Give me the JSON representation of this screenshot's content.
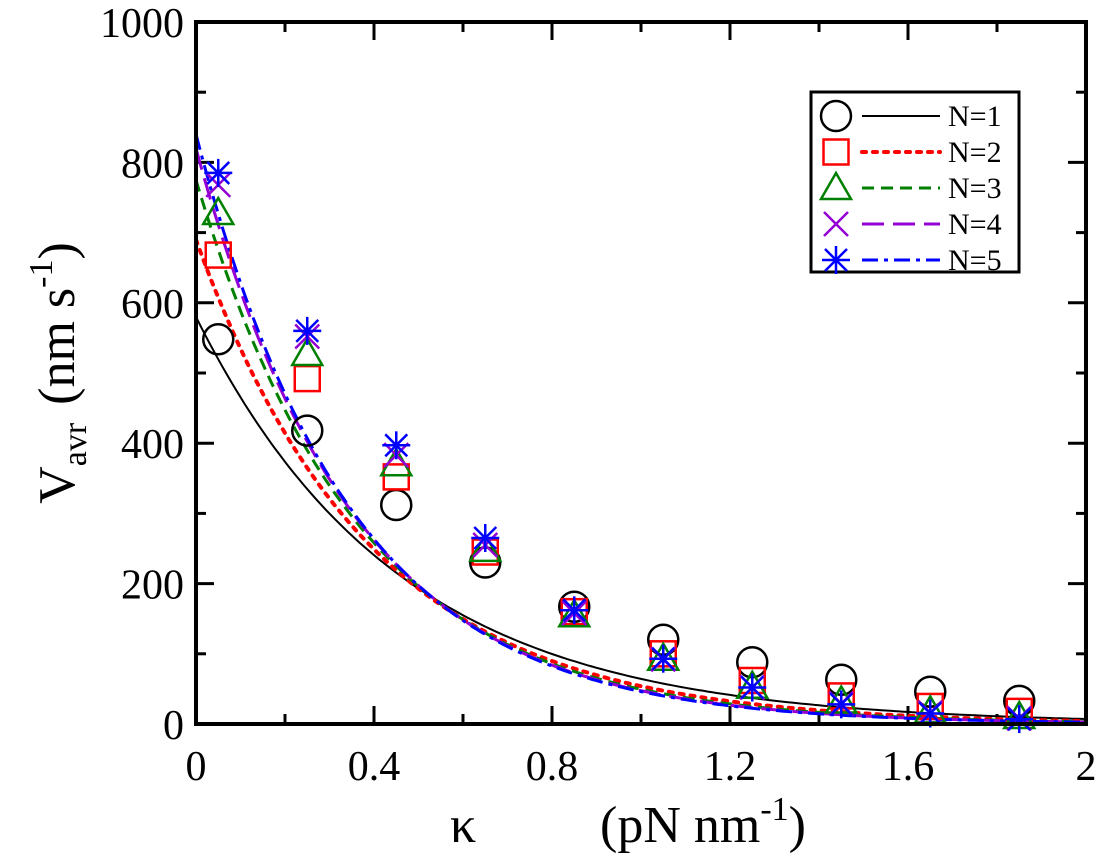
{
  "chart_data": {
    "type": "scatter",
    "title": "",
    "xlabel": {
      "symbol": "κ",
      "unit_prefix": "(pN nm",
      "unit_exp": "-1",
      "unit_suffix": ")"
    },
    "ylabel": {
      "symbol": "V",
      "sub": "avr",
      "unit_prefix": "(nm s",
      "unit_exp": "-1",
      "unit_suffix": ")"
    },
    "xlim": [
      0,
      2
    ],
    "ylim": [
      0,
      1000
    ],
    "x_ticks": [
      "0",
      "0.4",
      "0.8",
      "1.2",
      "1.6",
      "2"
    ],
    "y_ticks": [
      "0",
      "200",
      "400",
      "600",
      "800",
      "1000"
    ],
    "legend_position": "top-right",
    "grid": false,
    "x": [
      0.05,
      0.25,
      0.45,
      0.65,
      0.85,
      1.05,
      1.25,
      1.45,
      1.65,
      1.85
    ],
    "series": [
      {
        "name": "N=1",
        "label": "N=1",
        "marker": "circle",
        "color": "#000000",
        "line_style": "solid",
        "points": [
          548,
          418,
          312,
          230,
          167,
          120,
          88,
          63,
          46,
          33
        ],
        "curve": {
          "a": 580,
          "k": 2.2
        }
      },
      {
        "name": "N=2",
        "label": "N=2",
        "marker": "square",
        "color": "#ff0000",
        "line_style": "dotted",
        "points": [
          668,
          492,
          352,
          245,
          160,
          100,
          62,
          40,
          25,
          18
        ],
        "curve": {
          "a": 690,
          "k": 2.55
        }
      },
      {
        "name": "N=3",
        "label": "N=3",
        "marker": "triangle",
        "color": "#008000",
        "line_style": "dashed",
        "points": [
          728,
          527,
          370,
          248,
          155,
          93,
          53,
          32,
          18,
          10
        ],
        "curve": {
          "a": 775,
          "k": 2.75
        }
      },
      {
        "name": "N=4",
        "label": "N=4",
        "marker": "x",
        "color": "#9400d3",
        "line_style": "longdash",
        "points": [
          768,
          552,
          383,
          255,
          158,
          92,
          52,
          29,
          16,
          8
        ],
        "curve": {
          "a": 820,
          "k": 2.85
        }
      },
      {
        "name": "N=5",
        "label": "N=5",
        "marker": "star",
        "color": "#0000ff",
        "line_style": "dashdot",
        "points": [
          785,
          560,
          397,
          265,
          162,
          93,
          52,
          28,
          15,
          7
        ],
        "curve": {
          "a": 840,
          "k": 2.9
        }
      }
    ]
  }
}
